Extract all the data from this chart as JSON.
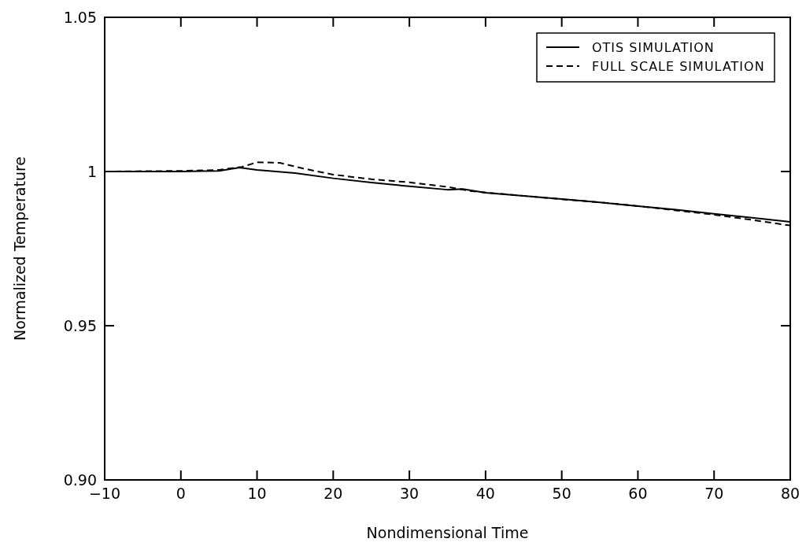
{
  "chart_data": {
    "type": "line",
    "xlabel": "Nondimensional Time",
    "ylabel": "Normalized Temperature",
    "xlim": [
      -10,
      80
    ],
    "xticks": [
      {
        "value": -10,
        "label": "−10"
      },
      0,
      10,
      20,
      30,
      40,
      50,
      60,
      70,
      80
    ],
    "ylim": [
      0.9,
      1.05
    ],
    "yticks": [
      {
        "value": 0.9,
        "label": "0.90"
      },
      0.95,
      1,
      1.05
    ],
    "grid": false,
    "legend": "top right",
    "series": [
      {
        "name": "OTIS SIMULATION",
        "color": "#000000",
        "line_style": "solid",
        "x": [
          -10,
          0,
          5,
          7.7,
          10,
          15,
          20,
          25,
          30,
          35,
          37,
          40,
          45,
          50,
          55,
          60,
          65,
          70,
          75,
          80
        ],
        "values": [
          1.0,
          1.0,
          1.0002,
          1.0013,
          1.0005,
          0.9995,
          0.9978,
          0.9964,
          0.9952,
          0.9941,
          0.9943,
          0.9931,
          0.9921,
          0.9911,
          0.99,
          0.9888,
          0.9876,
          0.9863,
          0.985,
          0.9837
        ]
      },
      {
        "name": "FULL SCALE SIMULATION",
        "color": "#000000",
        "line_style": "dashed",
        "x": [
          -10,
          0,
          5,
          8,
          10,
          13,
          16,
          20,
          25,
          30,
          35,
          38,
          40,
          45,
          50,
          55,
          60,
          65,
          70,
          75,
          80
        ],
        "values": [
          1.0,
          1.0002,
          1.0005,
          1.0015,
          1.003,
          1.0028,
          1.001,
          0.999,
          0.9975,
          0.9965,
          0.995,
          0.9937,
          0.9932,
          0.9921,
          0.991,
          0.99,
          0.9888,
          0.9874,
          0.986,
          0.9843,
          0.9825
        ]
      }
    ]
  }
}
